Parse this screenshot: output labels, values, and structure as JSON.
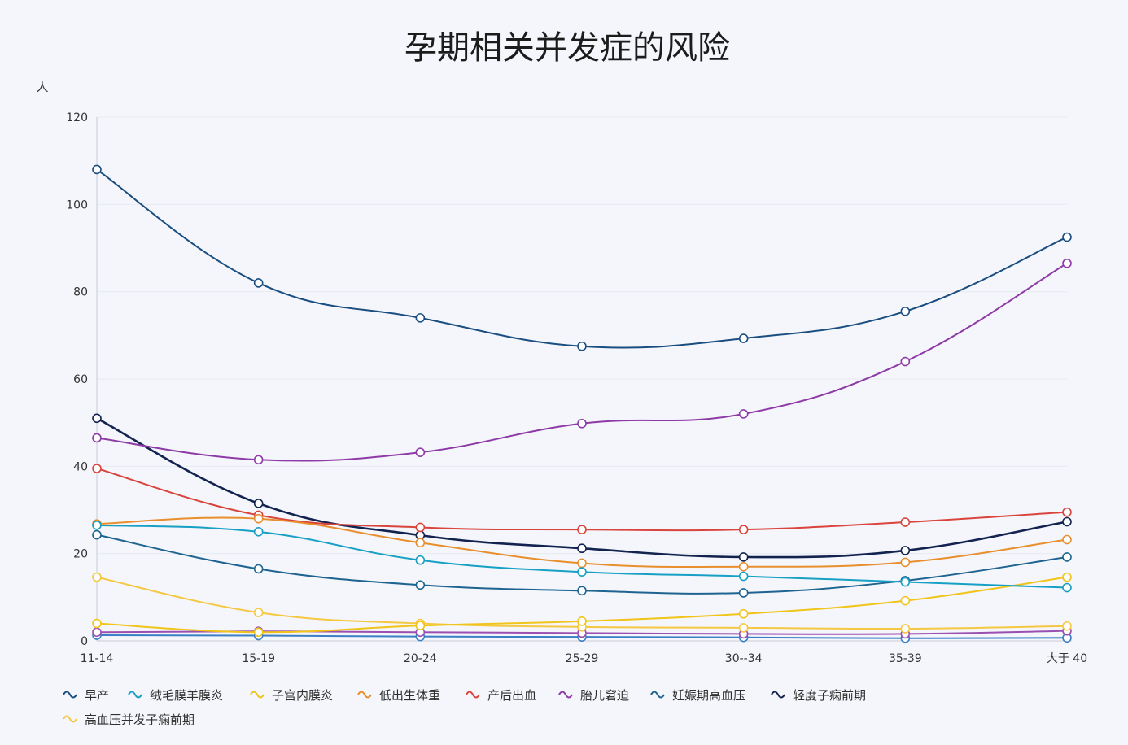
{
  "chart_data": {
    "type": "line",
    "title": "孕期相关并发症的风险",
    "ylabel": "人",
    "xlabel": "",
    "ylim": [
      0,
      120
    ],
    "yticks": [
      "0",
      "20",
      "40",
      "60",
      "80",
      "100",
      "120"
    ],
    "categories": [
      "11-14",
      "15-19",
      "20-24",
      "25-29",
      "30--34",
      "35-39",
      "大于 40"
    ],
    "series": [
      {
        "name": "早产",
        "color": "#1a4e80",
        "values": [
          108,
          82,
          74,
          67.5,
          69.3,
          75.5,
          92.5
        ]
      },
      {
        "name": "绒毛膜羊膜炎",
        "color": "#17a0c4",
        "values": [
          26.5,
          25,
          18.5,
          15.8,
          14.8,
          13.5,
          12.2
        ]
      },
      {
        "name": "子宫内膜炎",
        "color": "#f0c419",
        "values": [
          4,
          2,
          3.5,
          4.5,
          6.2,
          9.2,
          14.6
        ]
      },
      {
        "name": "低出生体重",
        "color": "#e88e2c",
        "values": [
          26.8,
          28,
          22.5,
          17.8,
          17,
          18,
          23.2
        ]
      },
      {
        "name": "产后出血",
        "color": "#d9443c",
        "values": [
          39.5,
          28.8,
          26,
          25.5,
          25.5,
          27.2,
          29.5
        ]
      },
      {
        "name": "胎儿窘迫",
        "color": "#8e3aa6",
        "values": [
          46.5,
          41.5,
          43.2,
          49.8,
          52,
          64,
          86.5
        ]
      },
      {
        "name": "妊娠期高血压",
        "color": "#1f6490",
        "values": [
          24.3,
          16.5,
          12.8,
          11.5,
          11,
          13.8,
          19.2
        ]
      },
      {
        "name": "轻度子痫前期",
        "color": "#13234f",
        "values": [
          51,
          31.5,
          24.2,
          21.2,
          19.2,
          20.7,
          27.3
        ]
      },
      {
        "name": "高血压并发子痫前期",
        "color": "#f5c842",
        "values": [
          14.6,
          6.5,
          4,
          3.2,
          3,
          2.8,
          3.4
        ]
      },
      {
        "name": "",
        "color": "#9b4fb0",
        "values": [
          2,
          2.2,
          2,
          1.8,
          1.6,
          1.6,
          2.3
        ]
      },
      {
        "name": "",
        "color": "#3b7fc4",
        "values": [
          1.3,
          1.2,
          1,
          0.9,
          0.8,
          0.6,
          0.7
        ]
      }
    ]
  }
}
